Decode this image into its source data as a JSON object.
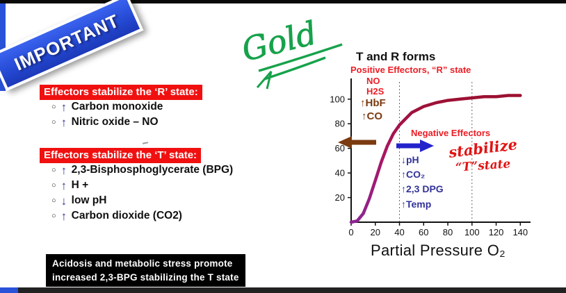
{
  "banner": {
    "label": "IMPORTANT"
  },
  "annotation": {
    "gold": "Gold"
  },
  "bullets": {
    "glyph": "○"
  },
  "sections": [
    {
      "heading": "Effectors stabilize the ‘R’ state:",
      "items": [
        {
          "arrow": "↑",
          "text": "Carbon monoxide"
        },
        {
          "arrow": "↑",
          "text": "Nitric oxide – NO"
        }
      ]
    },
    {
      "heading": "Effectors stabilize the ‘T’ state:",
      "items": [
        {
          "arrow": "↑",
          "text": "2,3-Bisphosphoglycerate (BPG)"
        },
        {
          "arrow": "↑",
          "text": "H +"
        },
        {
          "arrow": "↓",
          "text": "low pH"
        },
        {
          "arrow": "↑",
          "text": "Carbon dioxide (CO2)"
        }
      ]
    }
  ],
  "footnote": {
    "line1": "Acidosis and metabolic stress promote",
    "line2": "increased 2,3-BPG stabilizing the T state"
  },
  "chart": {
    "title": "T and R forms",
    "positive_label": "Positive Effectors, “R” state",
    "positive_items": [
      "NO",
      "H2S",
      "↑HbF",
      "↑CO"
    ],
    "negative_label": "Negative Effectors",
    "negative_items": [
      "↓pH",
      "↑CO₂",
      "↑2,3 DPG",
      "↑Temp"
    ],
    "handwritten_line1": "stabilize",
    "handwritten_line2": "“T”state",
    "xlabel": "Partial Pressure O₂"
  },
  "chart_data": {
    "type": "line",
    "title": "T and R forms",
    "xlabel": "Partial Pressure O₂",
    "ylabel": "",
    "x": [
      0,
      5,
      10,
      15,
      20,
      25,
      30,
      35,
      40,
      50,
      60,
      70,
      80,
      90,
      100,
      110,
      120,
      130,
      140
    ],
    "y": [
      0,
      1,
      7,
      19,
      34,
      49,
      62,
      72,
      79,
      89,
      94,
      97,
      99,
      100,
      101,
      102,
      102,
      103,
      103
    ],
    "xlim": [
      0,
      145
    ],
    "ylim": [
      0,
      114
    ],
    "xticks": [
      0,
      20,
      40,
      60,
      80,
      100,
      120,
      140
    ],
    "yticks": [
      20,
      40,
      60,
      80,
      100
    ],
    "vlines": [
      40,
      100
    ],
    "grid": false,
    "legend": false,
    "curve_color_top": "#9c1030",
    "curve_color_bottom": "#8e2492"
  },
  "colors": {
    "heading_bg": "#f01010",
    "chart_red": "#ed1c24",
    "brown": "#7b3a10",
    "blue_arrow": "#2323cc",
    "list_indigo": "#32329a",
    "green": "#17a24b",
    "banner_blue": "#2a52d8"
  }
}
